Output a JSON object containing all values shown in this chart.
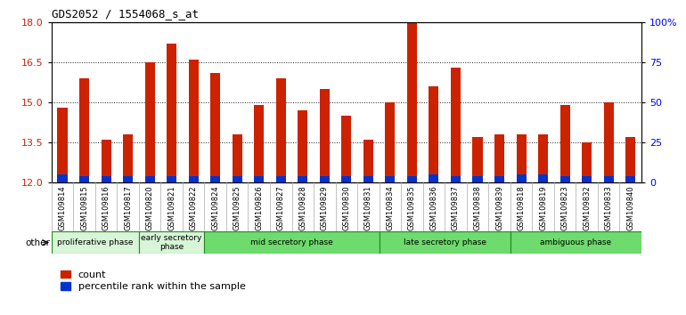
{
  "title": "GDS2052 / 1554068_s_at",
  "samples": [
    "GSM109814",
    "GSM109815",
    "GSM109816",
    "GSM109817",
    "GSM109820",
    "GSM109821",
    "GSM109822",
    "GSM109824",
    "GSM109825",
    "GSM109826",
    "GSM109827",
    "GSM109828",
    "GSM109829",
    "GSM109830",
    "GSM109831",
    "GSM109834",
    "GSM109835",
    "GSM109836",
    "GSM109837",
    "GSM109838",
    "GSM109839",
    "GSM109818",
    "GSM109819",
    "GSM109823",
    "GSM109832",
    "GSM109833",
    "GSM109840"
  ],
  "count_values": [
    14.8,
    15.9,
    13.6,
    13.8,
    16.5,
    17.2,
    16.6,
    16.1,
    13.8,
    14.9,
    15.9,
    14.7,
    15.5,
    14.5,
    13.6,
    15.0,
    18.0,
    15.6,
    16.3,
    13.7,
    13.8,
    13.8,
    13.8,
    14.9,
    13.5,
    15.0,
    13.7
  ],
  "percentile_values": [
    0.32,
    0.25,
    0.25,
    0.25,
    0.25,
    0.25,
    0.25,
    0.25,
    0.25,
    0.25,
    0.25,
    0.25,
    0.25,
    0.25,
    0.25,
    0.25,
    0.25,
    0.3,
    0.25,
    0.25,
    0.25,
    0.3,
    0.3,
    0.25,
    0.25,
    0.25,
    0.25
  ],
  "base": 12.0,
  "bar_color": "#cc2200",
  "percentile_color": "#0033cc",
  "ylim_left": [
    12,
    18
  ],
  "ylim_right": [
    0,
    100
  ],
  "yticks_left": [
    12,
    13.5,
    15,
    16.5,
    18
  ],
  "yticks_right": [
    0,
    25,
    50,
    75,
    100
  ],
  "phases": [
    {
      "label": "proliferative phase",
      "start": 0,
      "end": 4,
      "color": "#d8f5d8"
    },
    {
      "label": "early secretory\nphase",
      "start": 4,
      "end": 7,
      "color": "#d8f5d8"
    },
    {
      "label": "mid secretory phase",
      "start": 7,
      "end": 15,
      "color": "#6ddb6d"
    },
    {
      "label": "late secretory phase",
      "start": 15,
      "end": 21,
      "color": "#6ddb6d"
    },
    {
      "label": "ambiguous phase",
      "start": 21,
      "end": 27,
      "color": "#6ddb6d"
    }
  ],
  "other_label": "other",
  "legend_count_label": "count",
  "legend_percentile_label": "percentile rank within the sample",
  "plot_bg_color": "#ffffff",
  "xtick_bg_color": "#d8d8d8",
  "bar_width": 0.45
}
